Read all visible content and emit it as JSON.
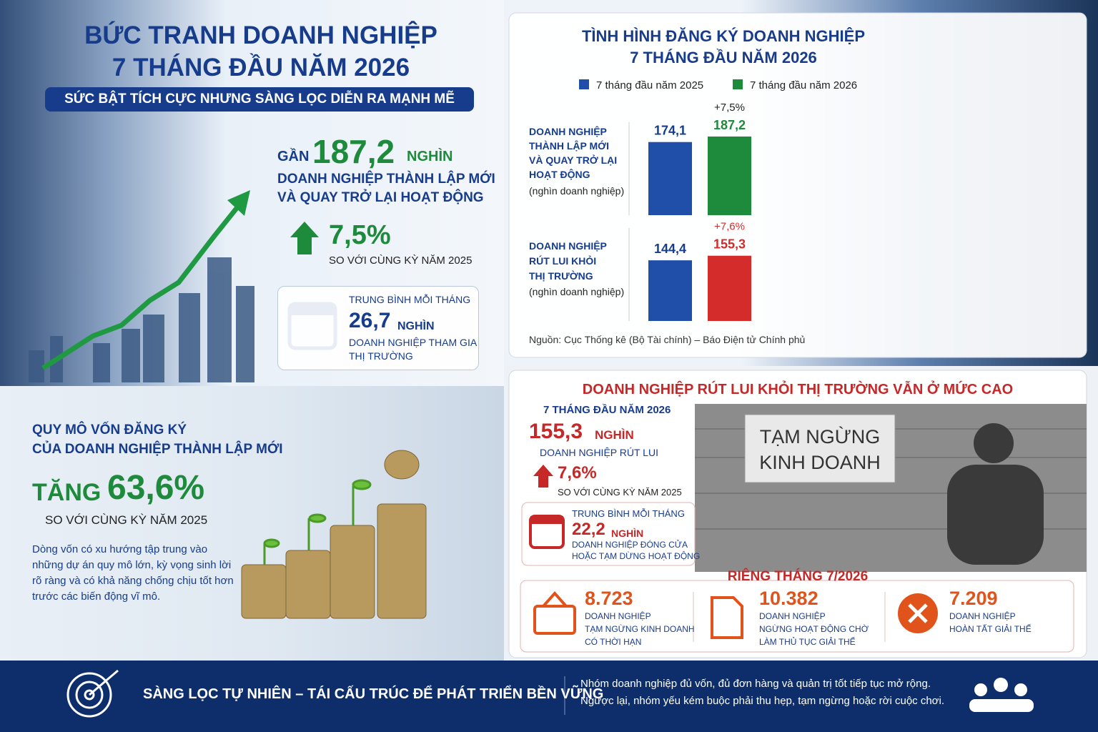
{
  "header": {
    "title_lines": [
      "BỨC TRANH DOANH NGHIỆP",
      "7 THÁNG ĐẦU NĂM 2026"
    ],
    "subtitle": "SỨC BẬT TÍCH CỰC NHƯNG SÀNG LỌC DIỄN RA MẠNH MẼ"
  },
  "highlight": {
    "prefix": "GẦN",
    "value": "187,2",
    "unit": "NGHÌN",
    "desc_lines": [
      "DOANH NGHIỆP THÀNH LẬP MỚI",
      "VÀ QUAY TRỞ LẠI HOẠT ĐỘNG"
    ],
    "growth": "7,5%",
    "growth_note": "SO VỚI CÙNG KỲ NĂM 2025"
  },
  "monthly_avg": {
    "label": "TRUNG BÌNH MỖI THÁNG",
    "value": "26,7",
    "unit": "NGHÌN",
    "desc_lines": [
      "DOANH NGHIỆP THAM GIA",
      "THỊ TRƯỜNG"
    ]
  },
  "capital": {
    "title_lines": [
      "QUY MÔ VỐN ĐĂNG KÝ",
      "CỦA DOANH NGHIỆP THÀNH LẬP MỚI"
    ],
    "prefix": "TĂNG",
    "value": "63,6%",
    "note": "SO VỚI CÙNG KỲ NĂM 2025",
    "body_lines": [
      "Dòng vốn có xu hướng tập trung vào",
      "những dự án quy mô lớn, kỳ vọng sinh lời",
      "rõ ràng và có khả năng chống chịu tốt hơn",
      "trước các biến động vĩ mô."
    ]
  },
  "chart_data": {
    "type": "bar",
    "title_lines": [
      "TÌNH HÌNH ĐĂNG KÝ DOANH NGHIỆP",
      "7 THÁNG ĐẦU NĂM 2026"
    ],
    "categories": [
      "DOANH NGHIỆP THÀNH LẬP MỚI VÀ QUAY TRỞ LẠI HOẠT ĐỘNG",
      "DOANH NGHIỆP RÚT LUI KHỎI THỊ TRƯỜNG"
    ],
    "category_units": [
      "(nghìn doanh nghiệp)",
      "(nghìn doanh nghiệp)"
    ],
    "series": [
      {
        "name": "7 tháng đầu năm 2025",
        "color": "#1f4fa8",
        "colors": [
          "#1f4fa8",
          "#1f4fa8"
        ],
        "values": [
          174.1,
          144.4
        ],
        "value_labels": [
          "174,1",
          "144,4"
        ]
      },
      {
        "name": "7 tháng đầu năm 2026",
        "color": "#1e8a3c",
        "colors": [
          "#1e8a3c",
          "#d42b2b"
        ],
        "values": [
          187.2,
          155.3
        ],
        "value_labels": [
          "187,2",
          "155,3"
        ],
        "change_labels": [
          "+7,5%",
          "+7,6%"
        ]
      }
    ],
    "source": "Nguồn: Cục Thống kê (Bộ Tài chính) – Báo Điện tử Chính phủ"
  },
  "exits": {
    "title": "DOANH NGHIỆP RÚT LUI KHỎI THỊ TRƯỜNG VẪN Ở MỨC CAO",
    "period": "7 THÁNG ĐẦU NĂM 2026",
    "value": "155,3",
    "unit": "NGHÌN",
    "desc": "DOANH NGHIỆP RÚT LUI",
    "growth": "7,6%",
    "growth_note": "SO VỚI CÙNG KỲ NĂM 2025",
    "monthly": {
      "label": "TRUNG BÌNH MỖI THÁNG",
      "value": "22,2",
      "unit": "NGHÌN",
      "desc_lines": [
        "DOANH NGHIỆP ĐÓNG CỬA",
        "HOẶC TẠM DỪNG HOẠT ĐỘNG"
      ]
    },
    "sign_lines": [
      "TẠM NGỪNG",
      "KINH DOANH"
    ],
    "july": {
      "title": "RIÊNG THÁNG 7/2026",
      "items": [
        {
          "value": "8.723",
          "desc_lines": [
            "DOANH NGHIỆP",
            "TẠM NGỪNG KINH DOANH",
            "CÓ THỜI HẠN"
          ]
        },
        {
          "value": "10.382",
          "desc_lines": [
            "DOANH NGHIỆP",
            "NGỪNG HOẠT ĐỘNG CHỜ",
            "LÀM THỦ TỤC GIẢI THỂ"
          ]
        },
        {
          "value": "7.209",
          "desc_lines": [
            "DOANH NGHIỆP",
            "HOÀN TẤT GIẢI THỂ"
          ]
        }
      ]
    }
  },
  "footer": {
    "slogan": "SÀNG LỌC TỰ NHIÊN – TÁI CẤU TRÚC ĐỂ PHÁT TRIỂN BỀN VỮNG",
    "text_lines": [
      "Nhóm doanh nghiệp đủ vốn, đủ đơn hàng và quản trị tốt tiếp tục mở rộng.",
      "Ngược lại, nhóm yếu kém buộc phải thu hẹp, tạm ngừng hoặc rời cuộc chơi."
    ]
  }
}
